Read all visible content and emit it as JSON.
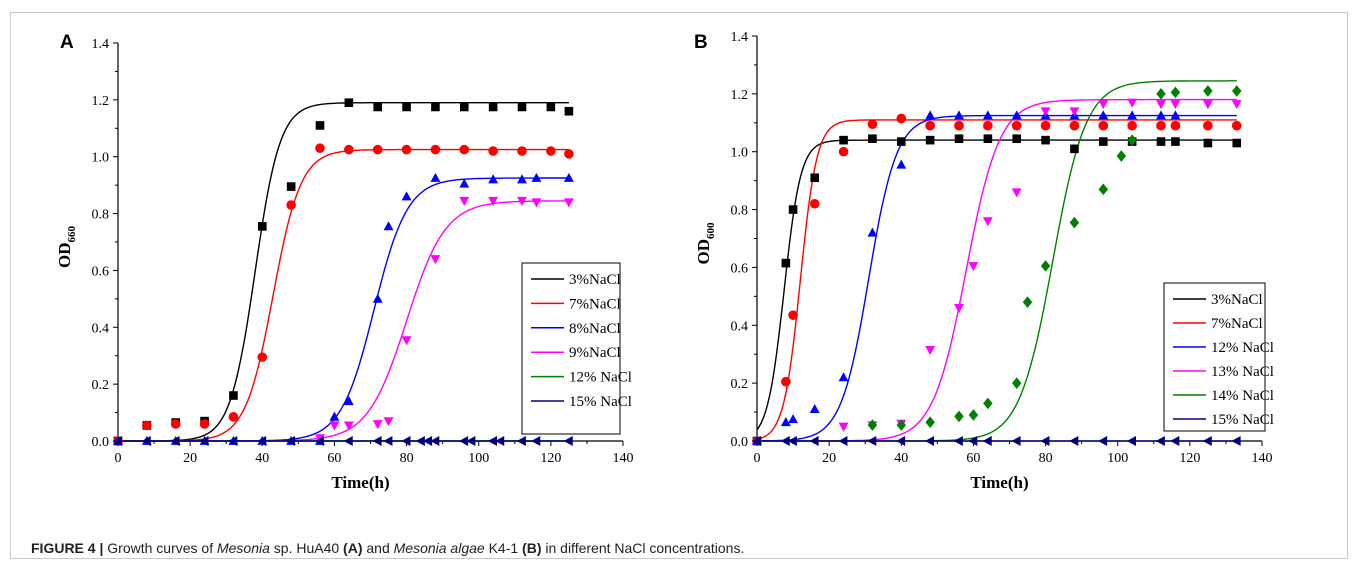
{
  "caption": {
    "label": "FIGURE 4 |",
    "t1": " Growth curves of ",
    "i1": "Mesonia",
    "t2": " sp. HuA40 ",
    "b1": "(A)",
    "t3": " and ",
    "i2": "Mesonia algae",
    "t4": " K4-1 ",
    "b2": "(B)",
    "t5": " in different NaCl concentrations."
  },
  "chart_data": [
    {
      "panel": "A",
      "type": "scatter",
      "xlabel": "Time(h)",
      "ylabel": "OD",
      "ylabel_sub": "660",
      "xlim": [
        0,
        140
      ],
      "ylim": [
        0,
        1.4
      ],
      "xticks": [
        0,
        20,
        40,
        60,
        80,
        100,
        120,
        140
      ],
      "yticks": [
        0.0,
        0.2,
        0.4,
        0.6,
        0.8,
        1.0,
        1.2,
        1.4
      ],
      "grid": false,
      "legend": "right",
      "series": [
        {
          "name": "3%NaCl",
          "color": "#000000",
          "marker": "square",
          "fit": {
            "A1": 0.0,
            "A2": 1.19,
            "x0": 38,
            "p": 9
          },
          "x": [
            0,
            8,
            16,
            24,
            32,
            40,
            48,
            56,
            64,
            72,
            80,
            88,
            96,
            104,
            112,
            120,
            125
          ],
          "y": [
            0.0,
            0.055,
            0.065,
            0.07,
            0.16,
            0.755,
            0.895,
            1.11,
            1.19,
            1.175,
            1.175,
            1.175,
            1.175,
            1.175,
            1.175,
            1.175,
            1.16
          ]
        },
        {
          "name": "7%NaCl",
          "color": "#ff0000",
          "marker": "circle",
          "fit": {
            "A1": 0.0,
            "A2": 1.025,
            "x0": 43,
            "p": 10
          },
          "x": [
            0,
            8,
            16,
            24,
            32,
            40,
            48,
            56,
            64,
            72,
            80,
            88,
            96,
            104,
            112,
            120,
            125
          ],
          "y": [
            0.0,
            0.055,
            0.06,
            0.06,
            0.085,
            0.295,
            0.83,
            1.03,
            1.025,
            1.025,
            1.025,
            1.025,
            1.025,
            1.02,
            1.02,
            1.02,
            1.01
          ]
        },
        {
          "name": "8%NaCl",
          "color": "#0000ff",
          "marker": "triangle-up",
          "fit": {
            "A1": 0.0,
            "A2": 0.925,
            "x0": 71,
            "p": 12
          },
          "x": [
            0,
            8,
            16,
            24,
            32,
            40,
            48,
            56,
            60,
            64,
            72,
            75,
            80,
            88,
            96,
            104,
            112,
            116,
            125
          ],
          "y": [
            0.0,
            0.0,
            0.0,
            0.0,
            0.0,
            0.0,
            0.0,
            0.0,
            0.085,
            0.14,
            0.5,
            0.755,
            0.86,
            0.925,
            0.905,
            0.92,
            0.92,
            0.925,
            0.925
          ]
        },
        {
          "name": "9%NaCl",
          "color": "#ff00ff",
          "marker": "triangle-down",
          "fit": {
            "A1": 0.0,
            "A2": 0.845,
            "x0": 80,
            "p": 14
          },
          "x": [
            56,
            60,
            64,
            72,
            75,
            80,
            88,
            96,
            104,
            112,
            116,
            125
          ],
          "y": [
            0.01,
            0.055,
            0.055,
            0.06,
            0.07,
            0.355,
            0.64,
            0.845,
            0.845,
            0.845,
            0.84,
            0.84
          ]
        },
        {
          "name": "12% NaCl",
          "color": "#008000",
          "marker": "diamond",
          "fit": {
            "A1": 0.0,
            "A2": 0.0,
            "x0": 100,
            "p": 10
          },
          "x": [],
          "y": []
        },
        {
          "name": "15% NaCl",
          "color": "#000080",
          "marker": "triangle-left",
          "fit": {
            "A1": 0.0,
            "A2": 0.0,
            "x0": 100,
            "p": 10
          },
          "x": [
            0,
            8,
            16,
            24,
            32,
            40,
            48,
            56,
            64,
            72,
            75,
            80,
            84,
            86,
            88,
            96,
            98,
            104,
            106,
            112,
            116,
            125
          ],
          "y": [
            0.0,
            0.0,
            0.0,
            0.0,
            0.0,
            0.0,
            0.0,
            0.0,
            0.0,
            0.0,
            0.0,
            0.0,
            0.0,
            0.0,
            0.0,
            0.0,
            0.0,
            0.0,
            0.0,
            0.0,
            0.0,
            0.0
          ]
        }
      ]
    },
    {
      "panel": "B",
      "type": "scatter",
      "xlabel": "Time(h)",
      "ylabel": "OD",
      "ylabel_sub": "600",
      "xlim": [
        0,
        140
      ],
      "ylim": [
        0,
        1.4
      ],
      "xticks": [
        0,
        20,
        40,
        60,
        80,
        100,
        120,
        140
      ],
      "yticks": [
        0.0,
        0.2,
        0.4,
        0.6,
        0.8,
        1.0,
        1.2,
        1.4
      ],
      "grid": false,
      "legend": "bottom-right",
      "series": [
        {
          "name": "3%NaCl",
          "color": "#000000",
          "marker": "square",
          "fit": {
            "A1": 0.0,
            "A2": 1.04,
            "x0": 7.5,
            "p": 6
          },
          "x": [
            0,
            8,
            10,
            16,
            24,
            32,
            40,
            48,
            56,
            64,
            72,
            80,
            88,
            96,
            104,
            112,
            116,
            125,
            133
          ],
          "y": [
            0.0,
            0.615,
            0.8,
            0.91,
            1.04,
            1.045,
            1.035,
            1.04,
            1.045,
            1.045,
            1.045,
            1.04,
            1.01,
            1.035,
            1.035,
            1.035,
            1.035,
            1.03,
            1.03
          ]
        },
        {
          "name": "7%NaCl",
          "color": "#ff0000",
          "marker": "circle",
          "fit": {
            "A1": 0.0,
            "A2": 1.11,
            "x0": 12,
            "p": 6
          },
          "x": [
            0,
            8,
            10,
            16,
            24,
            32,
            40,
            48,
            56,
            64,
            72,
            80,
            88,
            96,
            104,
            112,
            116,
            125,
            133
          ],
          "y": [
            0.0,
            0.205,
            0.435,
            0.82,
            1.0,
            1.095,
            1.115,
            1.09,
            1.09,
            1.09,
            1.09,
            1.09,
            1.09,
            1.09,
            1.09,
            1.09,
            1.09,
            1.09,
            1.09
          ]
        },
        {
          "name": "12% NaCl",
          "color": "#0000ff",
          "marker": "triangle-up",
          "fit": {
            "A1": 0.0,
            "A2": 1.125,
            "x0": 31,
            "p": 10
          },
          "x": [
            0,
            8,
            10,
            16,
            24,
            32,
            40,
            48,
            56,
            64,
            72,
            80,
            88,
            96,
            104,
            112,
            116
          ],
          "y": [
            0.0,
            0.065,
            0.075,
            0.11,
            0.22,
            0.72,
            0.955,
            1.125,
            1.125,
            1.125,
            1.125,
            1.125,
            1.125,
            1.125,
            1.125,
            1.125,
            1.125
          ]
        },
        {
          "name": "13% NaCl",
          "color": "#ff00ff",
          "marker": "triangle-down",
          "fit": {
            "A1": 0.0,
            "A2": 1.18,
            "x0": 58,
            "p": 12
          },
          "x": [
            24,
            32,
            40,
            48,
            56,
            60,
            64,
            72,
            80,
            88,
            96,
            104,
            112,
            116,
            125,
            133
          ],
          "y": [
            0.05,
            0.055,
            0.06,
            0.315,
            0.46,
            0.605,
            0.76,
            0.86,
            1.14,
            1.14,
            1.165,
            1.17,
            1.165,
            1.165,
            1.165,
            1.165
          ]
        },
        {
          "name": "14% NaCl",
          "color": "#008000",
          "marker": "diamond",
          "fit": {
            "A1": 0.0,
            "A2": 1.245,
            "x0": 82,
            "p": 12
          },
          "x": [
            32,
            40,
            48,
            56,
            60,
            64,
            72,
            75,
            80,
            88,
            96,
            101,
            104,
            112,
            116,
            125,
            133
          ],
          "y": [
            0.055,
            0.055,
            0.065,
            0.085,
            0.09,
            0.13,
            0.2,
            0.48,
            0.605,
            0.755,
            0.87,
            0.985,
            1.04,
            1.2,
            1.205,
            1.21,
            1.21
          ]
        },
        {
          "name": "15% NaCl",
          "color": "#000080",
          "marker": "triangle-left",
          "fit": {
            "A1": 0.0,
            "A2": 0.0,
            "x0": 100,
            "p": 10
          },
          "x": [
            0,
            8,
            10,
            16,
            24,
            32,
            40,
            48,
            56,
            60,
            64,
            72,
            80,
            88,
            96,
            104,
            112,
            116,
            125,
            133
          ],
          "y": [
            0.0,
            0.0,
            0.0,
            0.0,
            0.0,
            0.0,
            0.0,
            0.0,
            0.0,
            0.0,
            0.0,
            0.0,
            0.0,
            0.0,
            0.0,
            0.0,
            0.0,
            0.0,
            0.0,
            0.0
          ]
        }
      ]
    }
  ]
}
